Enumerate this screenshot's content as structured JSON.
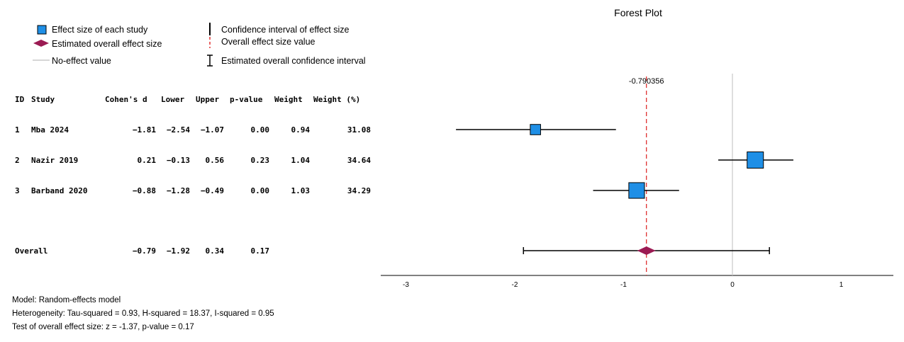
{
  "chart_data": {
    "type": "forest",
    "title": "Forest Plot",
    "legend": {
      "effect_size": "Effect size of each study",
      "overall_effect": "Estimated overall effect size",
      "no_effect": "No-effect value",
      "ci": "Confidence interval of effect size",
      "overall_value": "Overall effect size value",
      "overall_ci": "Estimated overall confidence interval"
    },
    "table_headers": [
      "ID",
      "Study",
      "Cohen's d",
      "Lower",
      "Upper",
      "p-value",
      "Weight",
      "Weight (%)"
    ],
    "studies": [
      {
        "id": "1",
        "study": "Mba 2024",
        "d": -1.81,
        "d_text": "−1.81",
        "lower": -2.54,
        "lower_text": "−2.54",
        "upper": -1.07,
        "upper_text": "−1.07",
        "p": "0.00",
        "weight": "0.94",
        "weight_pct": "31.08"
      },
      {
        "id": "2",
        "study": "Nazir 2019",
        "d": 0.21,
        "d_text": "0.21",
        "lower": -0.13,
        "lower_text": "−0.13",
        "upper": 0.56,
        "upper_text": "0.56",
        "p": "0.23",
        "weight": "1.04",
        "weight_pct": "34.64"
      },
      {
        "id": "3",
        "study": "Barband 2020",
        "d": -0.88,
        "d_text": "−0.88",
        "lower": -1.28,
        "lower_text": "−1.28",
        "upper": -0.49,
        "upper_text": "−0.49",
        "p": "0.00",
        "weight": "1.03",
        "weight_pct": "34.29"
      }
    ],
    "overall": {
      "label": "Overall",
      "d": -0.79,
      "d_text": "−0.79",
      "lower": -1.92,
      "lower_text": "−1.92",
      "upper": 0.34,
      "upper_text": "0.34",
      "p": "0.17"
    },
    "overall_value_label": "-0.790356",
    "overall_value": -0.790356,
    "no_effect_value": 0,
    "x_ticks": [
      -3,
      -2,
      -1,
      0,
      1
    ],
    "x_tick_labels": [
      "-3",
      "-2",
      "-1",
      "0",
      "1"
    ],
    "xlim": [
      -3.23,
      1.47
    ],
    "colors": {
      "square": "#1f8fe6",
      "diamond": "#9b1b53",
      "reference": "#e03030",
      "no_effect": "#c8c8c8"
    }
  },
  "footer": {
    "model": "Model: Random-effects model",
    "heterogeneity": "Heterogeneity: Tau-squared = 0.93, H-squared = 18.37, I-squared = 0.95",
    "test": "Test of overall effect size: z = -1.37, p-value = 0.17"
  }
}
